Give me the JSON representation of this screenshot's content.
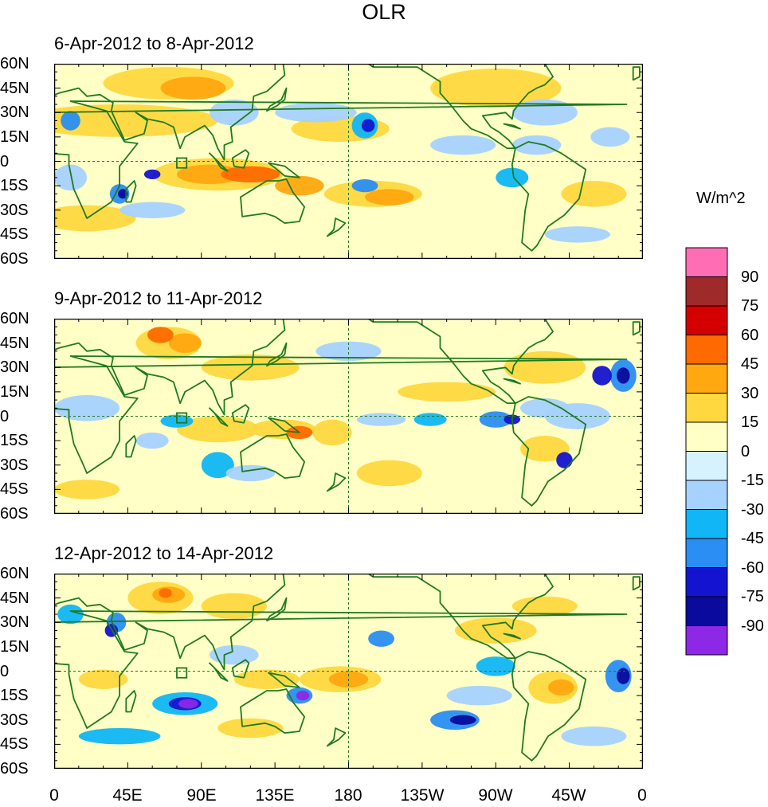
{
  "title": "OLR",
  "panels": [
    {
      "title": "6-Apr-2012 to 8-Apr-2012"
    },
    {
      "title": "9-Apr-2012 to 11-Apr-2012"
    },
    {
      "title": "12-Apr-2012 to 14-Apr-2012"
    }
  ],
  "lat_ticks": [
    "60N",
    "45N",
    "30N",
    "15N",
    "0",
    "15S",
    "30S",
    "45S",
    "60S"
  ],
  "lon_ticks": [
    "0",
    "45E",
    "90E",
    "135E",
    "180",
    "135W",
    "90W",
    "45W",
    "0"
  ],
  "colorbar": {
    "unit": "W/m^2",
    "labels": [
      "90",
      "75",
      "60",
      "45",
      "30",
      "15",
      "0",
      "-15",
      "-30",
      "-45",
      "-60",
      "-75",
      "-90"
    ],
    "colors": [
      "#ff6eb4",
      "#9e2a2a",
      "#d40000",
      "#ff6a00",
      "#ffa810",
      "#ffd840",
      "#ffffc6",
      "#d6f2ff",
      "#a6d2ff",
      "#10b6f6",
      "#2a8ef2",
      "#1414d0",
      "#0a0a9c",
      "#8c28e6"
    ]
  },
  "colors": {
    "land_outline": "#1f7a1f",
    "equator_line": "#1f7a1f"
  }
}
